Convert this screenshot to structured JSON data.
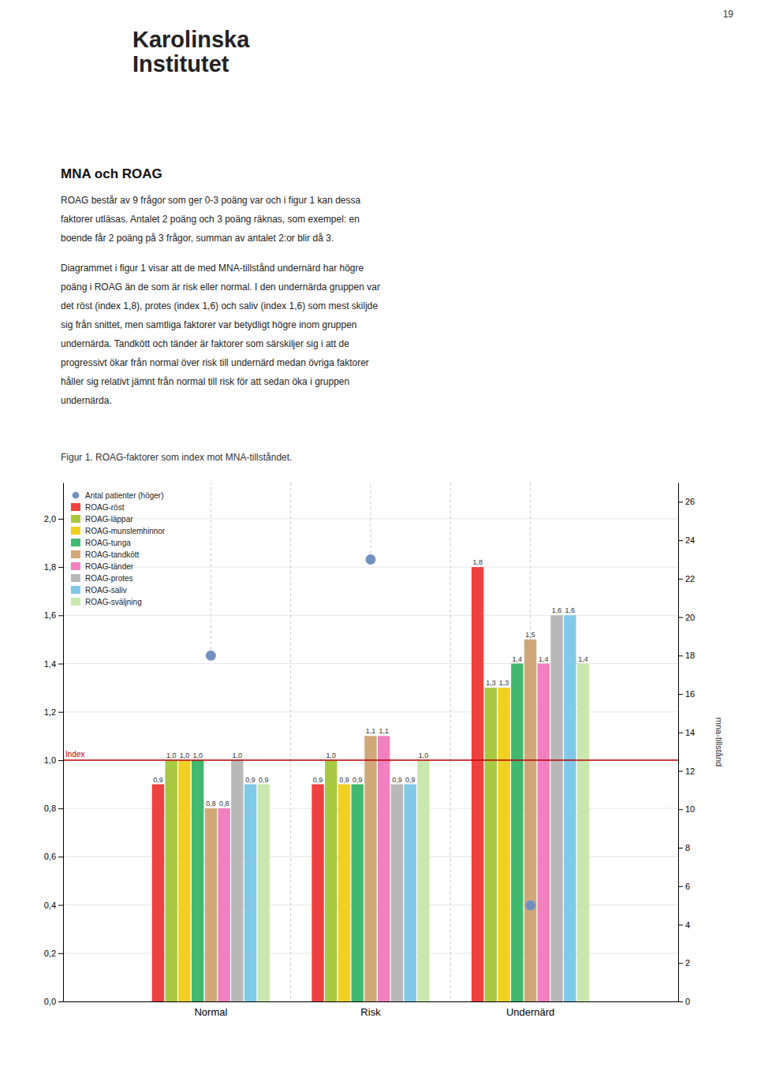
{
  "page_number": "19",
  "header": [
    "Karolinska",
    "Institutet"
  ],
  "section_title": "MNA och ROAG",
  "body_text": [
    [
      "ROAG består av 9 frågor som ger 0-3 poäng var och i figur 1 kan dessa",
      "faktorer utläsas. Antalet 2 poäng och 3 poäng räknas, som exempel: en",
      "boende får 2 poäng på 3 frågor, summan av antalet 2:or blir då 3."
    ],
    [
      "Diagrammet i figur 1 visar att de med MNA-tillstånd undernärd har högre",
      "poäng i ROAG än de som är risk eller normal. I den undernärda gruppen var",
      "det röst (index 1,8), protes (index 1,6) och saliv (index 1,6) som mest skiljde",
      "sig från snittet, men samtliga faktorer var betydligt högre inom gruppen",
      "undernärda. Tandkött och tänder är faktorer som särskiljer sig i att de",
      "progressivt ökar från normal över risk till undernärd medan övriga faktorer",
      "håller sig relativt jämnt från normal till risk för att sedan öka i gruppen",
      "undernärda."
    ]
  ],
  "chart_data": {
    "type": "bar",
    "title": "Figur 1. ROAG-faktorer som index mot MNA-tillståndet.",
    "categories": [
      "Normal",
      "Risk",
      "Undernärd"
    ],
    "series": [
      {
        "name": "Antal patienter (höger)",
        "type": "scatter",
        "axis": "y2",
        "marker": "circle",
        "color": "#7090c0",
        "values": [
          18,
          23,
          5
        ]
      },
      {
        "name": "ROAG-röst",
        "color": "#f04040",
        "values": [
          0.9,
          0.9,
          1.8
        ],
        "value_labels": [
          "0,9",
          "0,9",
          "1,8"
        ]
      },
      {
        "name": "ROAG-läppar",
        "color": "#a8c840",
        "values": [
          1.0,
          1.0,
          1.3
        ],
        "value_labels": [
          "1,0",
          "1,0",
          "1,3"
        ]
      },
      {
        "name": "ROAG-munslemhinnor",
        "color": "#f0d020",
        "values": [
          1.0,
          0.9,
          1.3
        ],
        "value_labels": [
          "1,0",
          "0,9",
          "1,3"
        ]
      },
      {
        "name": "ROAG-tunga",
        "color": "#40b870",
        "values": [
          1.0,
          0.9,
          1.4
        ],
        "value_labels": [
          "1,0",
          "0,9",
          "1,4"
        ]
      },
      {
        "name": "ROAG-tandkött",
        "color": "#d0a878",
        "values": [
          0.8,
          1.1,
          1.5
        ],
        "value_labels": [
          "0,8",
          "1,1",
          "1,5"
        ]
      },
      {
        "name": "ROAG-tänder",
        "color": "#f080c0",
        "values": [
          0.8,
          1.1,
          1.4
        ],
        "value_labels": [
          "0,8",
          "1,1",
          "1,4"
        ]
      },
      {
        "name": "ROAG-protes",
        "color": "#b8b8b8",
        "values": [
          1.0,
          0.9,
          1.6
        ],
        "value_labels": [
          "1,0",
          "0,9",
          "1,6"
        ]
      },
      {
        "name": "ROAG-saliv",
        "color": "#80c8e8",
        "values": [
          0.9,
          0.9,
          1.6
        ],
        "value_labels": [
          "0,9",
          "0,9",
          "1,6"
        ]
      },
      {
        "name": "ROAG-sväljning",
        "color": "#c8e8b0",
        "values": [
          0.9,
          1.0,
          1.4
        ],
        "value_labels": [
          "0,9",
          "1,0",
          "1,4"
        ]
      }
    ],
    "ylim": [
      0.0,
      2.15
    ],
    "yticks": [
      {
        "value": 0.0,
        "label": "0,0"
      },
      {
        "value": 0.2,
        "label": "0,2"
      },
      {
        "value": 0.4,
        "label": "0,4"
      },
      {
        "value": 0.6,
        "label": "0,6"
      },
      {
        "value": 0.8,
        "label": "0,8"
      },
      {
        "value": 1.0,
        "label": "1,0"
      },
      {
        "value": 1.2,
        "label": "1,2"
      },
      {
        "value": 1.4,
        "label": "1,4"
      },
      {
        "value": 1.6,
        "label": "1,6"
      },
      {
        "value": 1.8,
        "label": "1,8"
      },
      {
        "value": 2.0,
        "label": "2,0"
      }
    ],
    "y2label": "mna-tillstånd",
    "y2lim": [
      0,
      27
    ],
    "y2ticks": [
      0,
      2,
      4,
      6,
      8,
      10,
      12,
      14,
      16,
      18,
      20,
      22,
      24,
      26
    ],
    "annotations": [
      {
        "text": "Index",
        "value": 1.0,
        "color": "#c00000"
      }
    ],
    "data_labels": true,
    "grid": true,
    "legend": "upper left"
  }
}
